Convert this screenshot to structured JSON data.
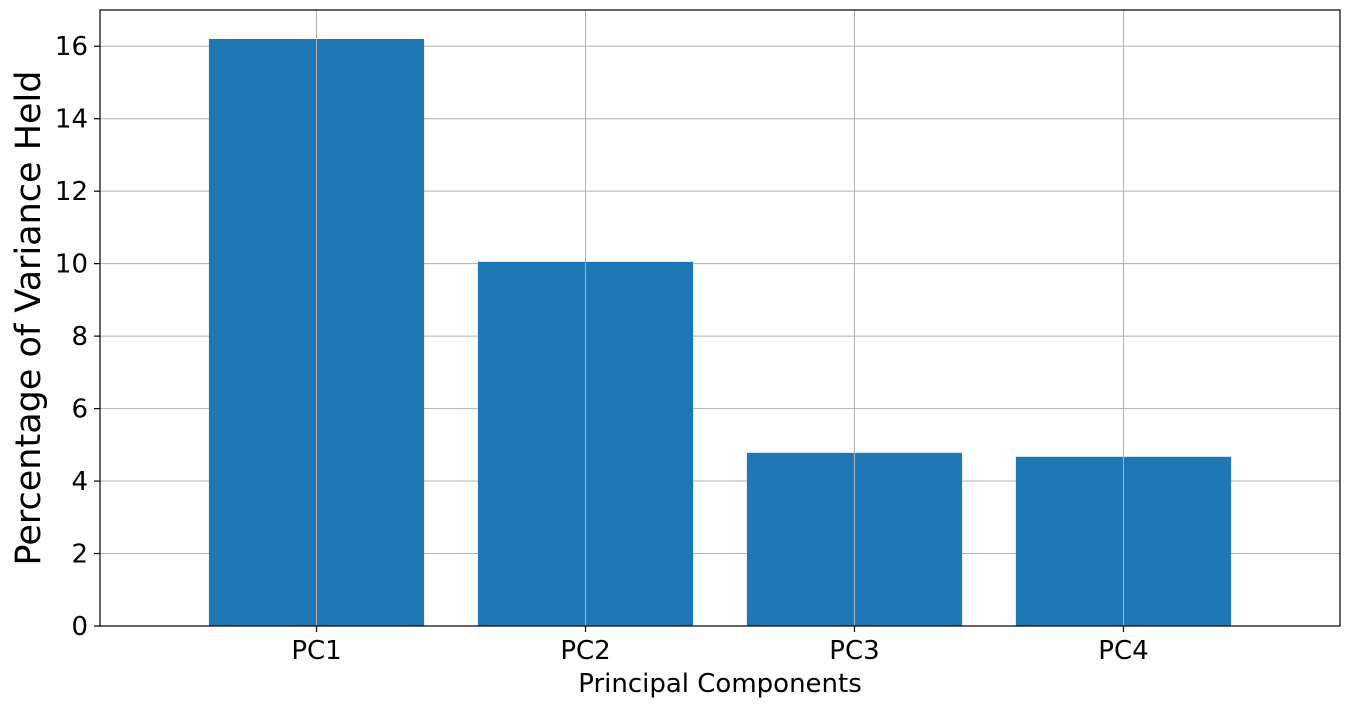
{
  "chart_data": {
    "type": "bar",
    "categories": [
      "PC1",
      "PC2",
      "PC3",
      "PC4"
    ],
    "values": [
      16.2,
      10.05,
      4.78,
      4.67
    ],
    "xlabel": "Principal Components",
    "ylabel": "Percentage of Variance Held",
    "ylim": [
      0,
      17
    ],
    "yticks": [
      0,
      2,
      4,
      6,
      8,
      10,
      12,
      14,
      16
    ],
    "grid": true,
    "colors": {
      "bar": "#1f77b4",
      "grid": "#b0b0b0"
    }
  }
}
